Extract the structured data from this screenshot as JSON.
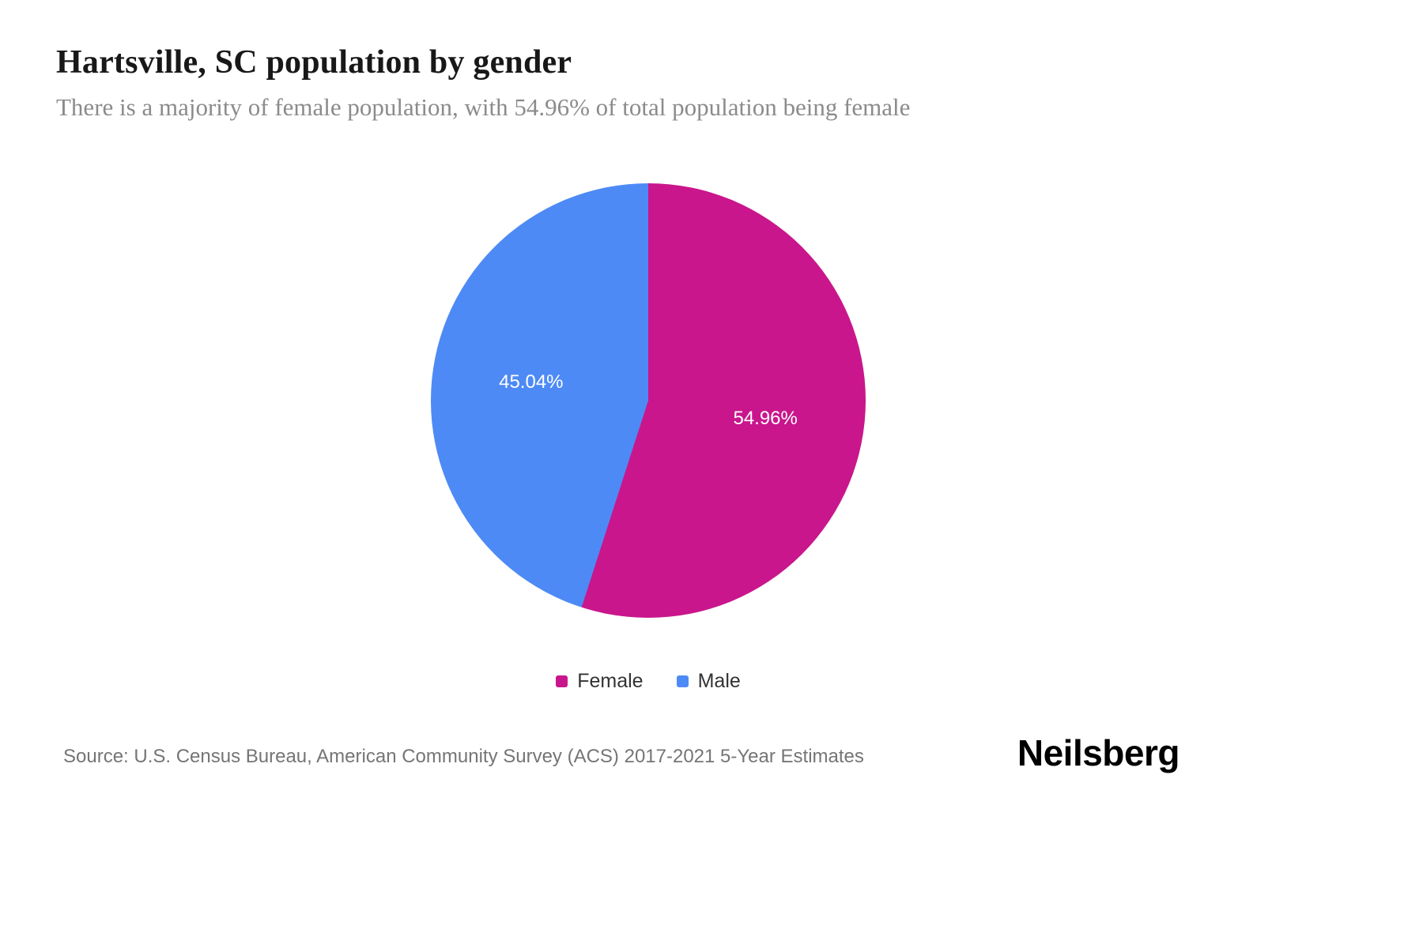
{
  "header": {
    "title": "Hartsville, SC population by gender",
    "subtitle": "There is a majority of female population, with 54.96% of total population being female"
  },
  "chart_data": {
    "type": "pie",
    "title": "Hartsville, SC population by gender",
    "start_angle_deg": 0,
    "direction": "clockwise",
    "legend_position": "bottom",
    "slices": [
      {
        "label": "Female",
        "value": 54.96,
        "display": "54.96%",
        "color": "#c9168c"
      },
      {
        "label": "Male",
        "value": 45.04,
        "display": "45.04%",
        "color": "#4d8af5"
      }
    ]
  },
  "footer": {
    "source": "Source: U.S. Census Bureau, American Community Survey (ACS) 2017-2021 5-Year Estimates",
    "logo": "Neilsberg"
  }
}
